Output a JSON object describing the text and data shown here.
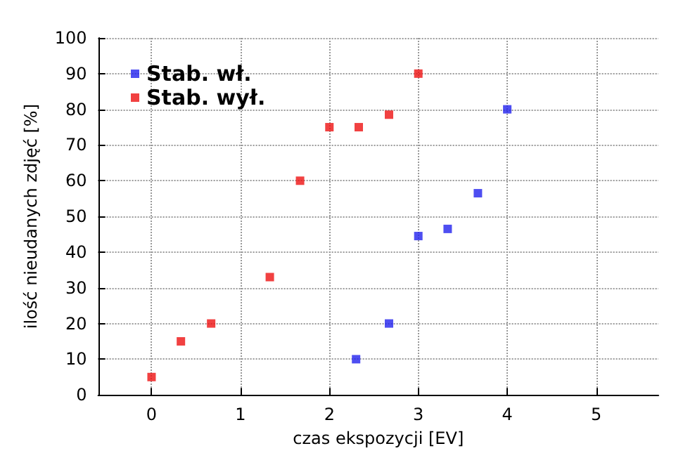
{
  "chart_data": {
    "type": "scatter",
    "xlabel": "czas ekspozycji [EV]",
    "ylabel": "ilość nieudanych zdjęć [%]",
    "xlim": [
      -0.6,
      5.7
    ],
    "xticks": [
      0,
      1,
      2,
      3,
      4,
      5
    ],
    "ylim": [
      0,
      100
    ],
    "yticks": [
      0,
      10,
      20,
      30,
      40,
      50,
      60,
      70,
      80,
      90,
      100
    ],
    "grid": true,
    "legend": "top left",
    "marker": "square",
    "series": [
      {
        "name": "Stab. wł.",
        "color": "#2222ee",
        "x": [
          2.3,
          2.67,
          3.0,
          3.33,
          3.67,
          4.0
        ],
        "values": [
          10,
          20,
          44.5,
          46.5,
          56.5,
          80
        ]
      },
      {
        "name": "Stab. wył.",
        "color": "#ee1111",
        "x": [
          0,
          0.33,
          0.67,
          1.33,
          1.67,
          2.0,
          2.33,
          2.67,
          3.0
        ],
        "values": [
          5,
          15,
          20,
          33,
          60,
          75,
          75,
          78.5,
          90
        ]
      }
    ]
  }
}
